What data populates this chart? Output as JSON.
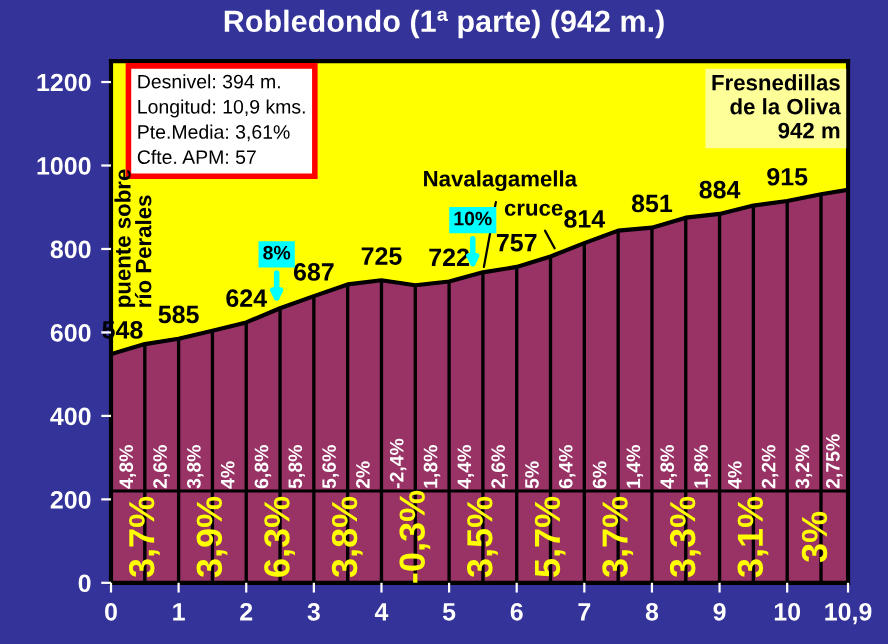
{
  "chart_data": {
    "type": "area",
    "title": "Robledondo (1ª parte) (942 m.)",
    "x": [
      0,
      0.5,
      1,
      1.5,
      2,
      2.5,
      3,
      3.5,
      4,
      4.5,
      5,
      5.5,
      6,
      6.5,
      7,
      7.5,
      8,
      8.5,
      9,
      9.5,
      10,
      10.5,
      10.9
    ],
    "series": [
      {
        "color": "#993366",
        "values": [
          548,
          572,
          585,
          604,
          624,
          658,
          687,
          715,
          725,
          713,
          722,
          744,
          757,
          782,
          814,
          844,
          851,
          875,
          884,
          904,
          915,
          931,
          942
        ],
        "value_labels": [
          "548",
          null,
          "585",
          null,
          "624",
          null,
          "687",
          null,
          "725",
          null,
          "722",
          null,
          "757",
          null,
          "814",
          null,
          "851",
          null,
          "884",
          null,
          "915",
          null,
          null
        ]
      }
    ],
    "xlim": [
      0,
      10.9
    ],
    "xticks": [
      0,
      1,
      2,
      3,
      4,
      5,
      6,
      7,
      8,
      9,
      10,
      {
        "value": 10.9,
        "label": "10,9"
      }
    ],
    "ylim": [
      0,
      1250
    ],
    "yticks": [
      0,
      200,
      400,
      600,
      800,
      1000,
      1200
    ],
    "grid": "x",
    "ref_lines": [
      {
        "axis": "y",
        "value": 220,
        "label": null,
        "color": "#000000"
      }
    ],
    "annotations": [
      "Desnivel: 394 m.\nLongitud: 10,9 kms.\nPte.Media: 3,61%\nCfte. APM: 57",
      "Fresnedillas\nde la Oliva\n942 m",
      {
        "text": "puente sobre\nrío Perales",
        "x": 0,
        "y": 548
      },
      {
        "text": "Navalagamella",
        "x": 5.5,
        "y": 744
      },
      {
        "text": "cruce",
        "x": 6.6,
        "y": 790
      },
      {
        "text": "8%",
        "x": 2.45,
        "y": 655
      },
      {
        "text": "10%",
        "x": 5.35,
        "y": 737
      },
      "4,8%",
      "2,6%",
      "3,8%",
      "4%",
      "6,8%",
      "5,8%",
      "5,6%",
      "2%",
      "-2,4%",
      "1,8%",
      "4,4%",
      "2,6%",
      "5%",
      "6,4%",
      "6%",
      "1,4%",
      "4,8%",
      "1,8%",
      "4%",
      "2,2%",
      "3,2%",
      "2,75%",
      "3,7%",
      "3,9%",
      "6,3%",
      "3,8%",
      "-0,3%",
      "3,5%",
      "5,7%",
      "3,7%",
      "3,3%",
      "3,1%",
      "3%"
    ]
  }
}
